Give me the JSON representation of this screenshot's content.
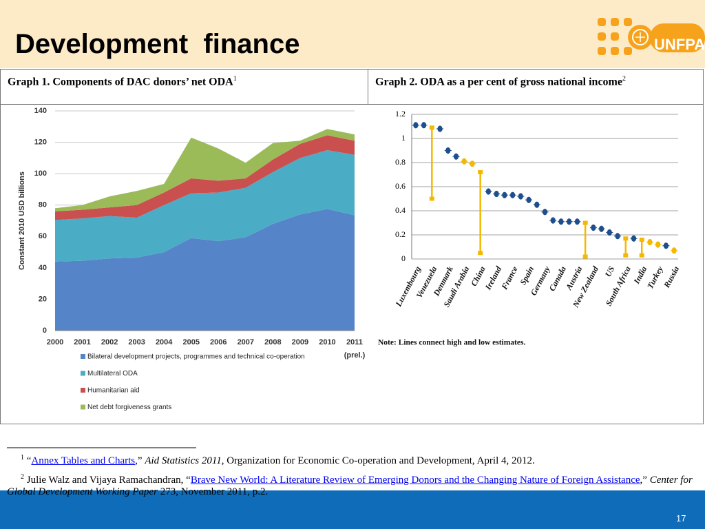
{
  "header": {
    "title": "Development  finance",
    "logo": "UNFPA"
  },
  "table": {
    "headers": [
      {
        "text": "Graph 1. Components of DAC donors’ net ODA",
        "note": "1"
      },
      {
        "text": "Graph 2. ODA as a per cent of gross national income",
        "note": "2"
      }
    ]
  },
  "chart_data": [
    {
      "type": "stacked-area",
      "categories": [
        "2000",
        "2001",
        "2002",
        "2003",
        "2004",
        "2005",
        "2006",
        "2007",
        "2008",
        "2009",
        "2010",
        "2011"
      ],
      "annotation": "(prel.)",
      "ylabel": "Constant 2010 USD billions",
      "ylim": [
        0,
        140
      ],
      "yticks": [
        0,
        20,
        40,
        60,
        80,
        100,
        120,
        140
      ],
      "grid": true,
      "legend": "bottom",
      "series": [
        {
          "name": "Bilateral development projects, programmes and technical co-operation",
          "color": "#5585c8",
          "values": [
            44,
            44.5,
            46,
            46.5,
            50,
            59,
            57,
            59.5,
            68,
            74,
            77.5,
            73.5
          ]
        },
        {
          "name": "Multilateral ODA",
          "color": "#4bacc6",
          "values": [
            26.5,
            27,
            27,
            25.5,
            30,
            28.5,
            31,
            31.5,
            33,
            36,
            37.5,
            38.5
          ]
        },
        {
          "name": "Humanitarian aid",
          "color": "#c9504f",
          "values": [
            5.5,
            5.5,
            5.5,
            8,
            8,
            9.5,
            7.5,
            6,
            8,
            9,
            9.5,
            9
          ]
        },
        {
          "name": "Net debt forgiveness grants",
          "color": "#9bbb59",
          "values": [
            2,
            3,
            7,
            9,
            5.5,
            26,
            20.5,
            10,
            10.5,
            2,
            4,
            4
          ]
        }
      ]
    },
    {
      "type": "dot-range",
      "categories": [
        "Luxembourg",
        null,
        "Venezuela",
        null,
        "Denmark",
        null,
        "Saudi Arabia",
        null,
        "China",
        null,
        "Ireland",
        null,
        "France",
        null,
        "Spain",
        null,
        "Germany",
        null,
        "Canada",
        null,
        "Austria",
        null,
        "New Zealand",
        null,
        "US",
        null,
        "South Africa",
        null,
        "India",
        null,
        "Turkey",
        null,
        "Russia"
      ],
      "values": [
        1.11,
        1.11,
        1.09,
        1.08,
        0.9,
        0.85,
        0.81,
        0.79,
        0.72,
        0.56,
        0.54,
        0.53,
        0.53,
        0.52,
        0.49,
        0.45,
        0.39,
        0.32,
        0.31,
        0.31,
        0.31,
        0.3,
        0.26,
        0.25,
        0.22,
        0.19,
        0.17,
        0.17,
        0.16,
        0.14,
        0.12,
        0.11,
        0.07
      ],
      "low": [
        null,
        null,
        0.5,
        null,
        null,
        null,
        null,
        null,
        0.05,
        null,
        null,
        null,
        null,
        null,
        null,
        null,
        null,
        null,
        null,
        null,
        null,
        0.02,
        null,
        null,
        null,
        null,
        0.03,
        null,
        0.03,
        null,
        null,
        null,
        null
      ],
      "colors": [
        "#1f4e8c",
        "#1f4e8c",
        "#f5b800",
        "#1f4e8c",
        "#1f4e8c",
        "#1f4e8c",
        "#f5b800",
        "#f5b800",
        "#f5b800",
        "#1f4e8c",
        "#1f4e8c",
        "#1f4e8c",
        "#1f4e8c",
        "#1f4e8c",
        "#1f4e8c",
        "#1f4e8c",
        "#1f4e8c",
        "#1f4e8c",
        "#1f4e8c",
        "#1f4e8c",
        "#1f4e8c",
        "#f5b800",
        "#1f4e8c",
        "#1f4e8c",
        "#1f4e8c",
        "#1f4e8c",
        "#f5b800",
        "#1f4e8c",
        "#f5b800",
        "#f5b800",
        "#f5b800",
        "#1f4e8c",
        "#f5b800"
      ],
      "ylim": [
        0,
        1.2
      ],
      "yticks": [
        0,
        0.2,
        0.4,
        0.6,
        0.8,
        1,
        1.2
      ],
      "grid": true,
      "note": "Note: Lines connect high and low estimates."
    }
  ],
  "footnotes": [
    {
      "number": "1",
      "lead": "“",
      "link": "Annex Tables and Charts",
      "mid": ",” ",
      "source": "Aid Statistics 2011",
      "rest": ", Organization for Economic Co-operation and Development, April 4, 2012."
    },
    {
      "number": "2",
      "lead": " Julie Walz and Vijaya Ramachandran, “",
      "link": "Brave New World: A Literature Review of Emerging Donors and the Changing Nature of Foreign Assistance",
      "mid": ",” ",
      "source": "Center for Global Development Working Paper",
      "rest": " 273, November 2011, p.2."
    }
  ],
  "page_number": "17"
}
